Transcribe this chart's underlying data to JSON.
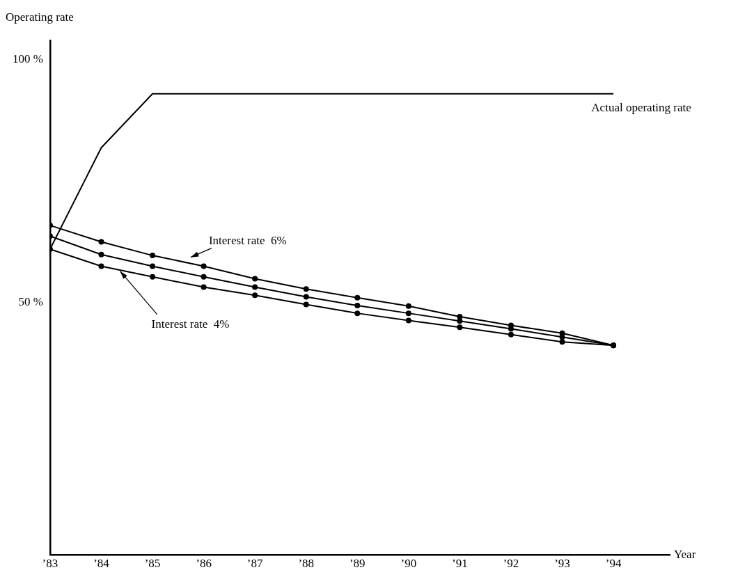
{
  "chart_data": {
    "type": "line",
    "ylabel": "Operating rate",
    "xlabel": "Year",
    "categories": [
      "’83",
      "’84",
      "’85",
      "’86",
      "’87",
      "’88",
      "’89",
      "’90",
      "’91",
      "’92",
      "’93",
      "’94"
    ],
    "series": [
      {
        "name": "Actual operating rate",
        "color": "#000000",
        "marker": "none",
        "values": [
          61.0,
          81.9,
          93,
          93,
          93,
          93,
          93,
          93,
          93,
          93,
          93,
          93
        ]
      },
      {
        "name": "Interest rate  6%",
        "color": "#000000",
        "marker": "circle",
        "values": [
          65.9,
          62.5,
          59.7,
          57.5,
          54.9,
          52.8,
          51.0,
          49.3,
          47.1,
          45.3,
          43.7,
          41.2
        ]
      },
      {
        "color": "#000000",
        "marker": "circle",
        "values": [
          63.7,
          59.9,
          57.5,
          55.3,
          53.2,
          51.2,
          49.4,
          47.8,
          46.2,
          44.6,
          42.9,
          41.2
        ]
      },
      {
        "name": "Interest rate  4%",
        "color": "#000000",
        "marker": "circle",
        "values": [
          61.0,
          57.5,
          55.3,
          53.2,
          51.5,
          49.6,
          47.8,
          46.3,
          44.9,
          43.4,
          41.9,
          41.2
        ]
      }
    ],
    "ylim": [
      -2,
      104
    ],
    "yticks": [
      {
        "value": 50,
        "label": "50 %"
      },
      {
        "value": 100,
        "label": "100 %"
      }
    ],
    "grid": false,
    "legend": false,
    "line_style": "solid"
  }
}
